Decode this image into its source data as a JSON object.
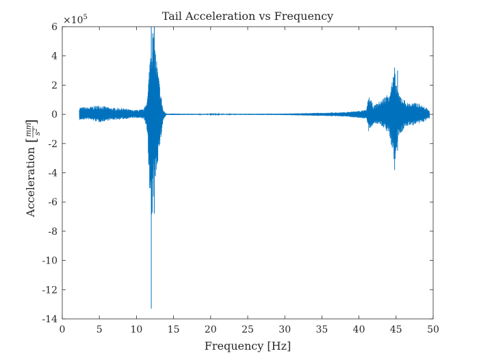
{
  "chart_data": {
    "type": "line",
    "title": "Tail Acceleration vs Frequency",
    "xlabel": "Frequency [Hz]",
    "ylabel": "Acceleration",
    "ylabel_units": {
      "numerator": "mm",
      "denominator": "s",
      "exponent": "2"
    },
    "y_multiplier": {
      "base": "×10",
      "exponent": "5"
    },
    "xlim": [
      0,
      50
    ],
    "ylim": [
      -14,
      6
    ],
    "xticks": [
      0,
      5,
      10,
      15,
      20,
      25,
      30,
      35,
      40,
      45,
      50
    ],
    "yticks": [
      6,
      4,
      2,
      0,
      -2,
      -4,
      -6,
      -8,
      -10,
      -12,
      -14
    ],
    "grid": false,
    "series": [
      {
        "color": "#0072BD",
        "envelope": [
          {
            "x": 2.3,
            "min": -0.4,
            "max": 0.5
          },
          {
            "x": 3.5,
            "min": -0.35,
            "max": 0.5
          },
          {
            "x": 5.0,
            "min": -0.55,
            "max": 0.65
          },
          {
            "x": 6.5,
            "min": -0.4,
            "max": 0.45
          },
          {
            "x": 8.0,
            "min": -0.35,
            "max": 0.45
          },
          {
            "x": 9.5,
            "min": -0.25,
            "max": 0.3
          },
          {
            "x": 11.0,
            "min": -0.3,
            "max": 0.35
          },
          {
            "x": 11.5,
            "min": -1.5,
            "max": 1.2
          },
          {
            "x": 11.8,
            "min": -6.5,
            "max": 4.0
          },
          {
            "x": 12.0,
            "min": -8.5,
            "max": 6.0
          },
          {
            "x": 12.3,
            "min": -5.5,
            "max": 5.8
          },
          {
            "x": 12.8,
            "min": -3.5,
            "max": 3.5
          },
          {
            "x": 13.2,
            "min": -2.0,
            "max": 1.8
          },
          {
            "x": 13.6,
            "min": -0.4,
            "max": 0.3
          },
          {
            "x": 14.0,
            "min": -0.05,
            "max": 0.05
          },
          {
            "x": 20.0,
            "min": -0.03,
            "max": 0.03
          },
          {
            "x": 30.0,
            "min": -0.05,
            "max": 0.05
          },
          {
            "x": 38.0,
            "min": -0.15,
            "max": 0.15
          },
          {
            "x": 41.0,
            "min": -0.3,
            "max": 0.3
          },
          {
            "x": 41.3,
            "min": -1.3,
            "max": 1.3
          },
          {
            "x": 42.0,
            "min": -0.6,
            "max": 0.6
          },
          {
            "x": 43.0,
            "min": -0.8,
            "max": 1.0
          },
          {
            "x": 44.0,
            "min": -1.3,
            "max": 1.5
          },
          {
            "x": 44.8,
            "min": -3.5,
            "max": 3.0
          },
          {
            "x": 45.3,
            "min": -1.5,
            "max": 1.5
          },
          {
            "x": 46.5,
            "min": -0.8,
            "max": 0.8
          },
          {
            "x": 48.0,
            "min": -0.7,
            "max": 0.8
          },
          {
            "x": 49.5,
            "min": -0.3,
            "max": 0.3
          }
        ],
        "spikes": [
          {
            "x": 12.0,
            "min": -13.3,
            "max": 6.0
          },
          {
            "x": 12.4,
            "min": -6.8,
            "max": 6.0
          },
          {
            "x": 44.8,
            "min": -3.8,
            "max": 3.2
          },
          {
            "x": 45.2,
            "min": -2.5,
            "max": 3.0
          }
        ]
      }
    ]
  }
}
